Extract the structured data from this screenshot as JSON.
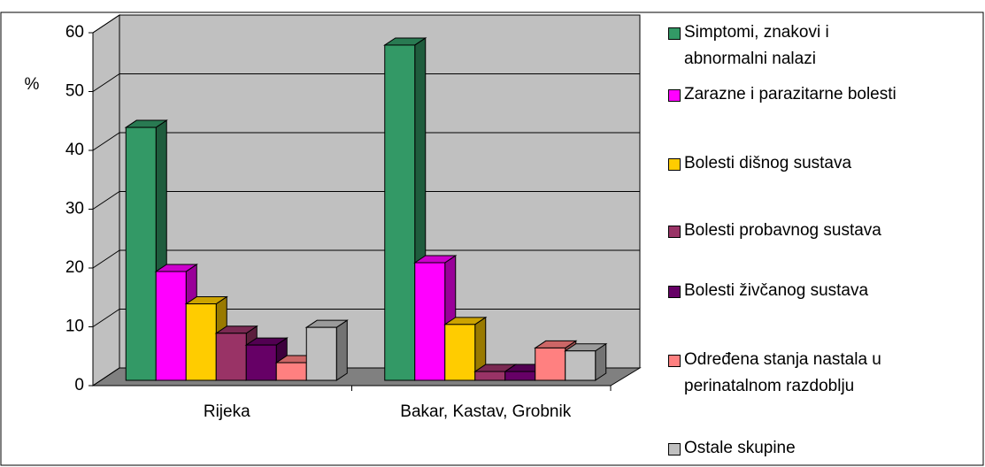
{
  "chart_data": {
    "type": "bar3d",
    "y_label": "%",
    "categories": [
      "Rijeka",
      "Bakar, Kastav, Grobnik"
    ],
    "series": [
      {
        "name": "Simptomi, znakovi i abnormalni nalazi",
        "color": "#339966",
        "values": [
          43,
          57
        ]
      },
      {
        "name": "Zarazne i parazitarne bolesti",
        "color": "#ff00ff",
        "values": [
          18.5,
          20
        ]
      },
      {
        "name": "Bolesti dišnog sustava",
        "color": "#ffcc00",
        "values": [
          13,
          9.5
        ]
      },
      {
        "name": "Bolesti probavnog sustava",
        "color": "#993366",
        "values": [
          8,
          1.5
        ]
      },
      {
        "name": "Bolesti živčanog sustava",
        "color": "#660066",
        "values": [
          6,
          1.5
        ]
      },
      {
        "name": "Određena stanja nastala u perinatalnom razdoblju",
        "color": "#ff8080",
        "values": [
          3,
          5.5
        ]
      },
      {
        "name": "Ostale skupine",
        "color": "#c0c0c0",
        "values": [
          9,
          5
        ]
      }
    ],
    "ylim": [
      0,
      60
    ],
    "yticks": [
      0,
      10,
      20,
      30,
      40,
      50,
      60
    ],
    "grid": true
  }
}
